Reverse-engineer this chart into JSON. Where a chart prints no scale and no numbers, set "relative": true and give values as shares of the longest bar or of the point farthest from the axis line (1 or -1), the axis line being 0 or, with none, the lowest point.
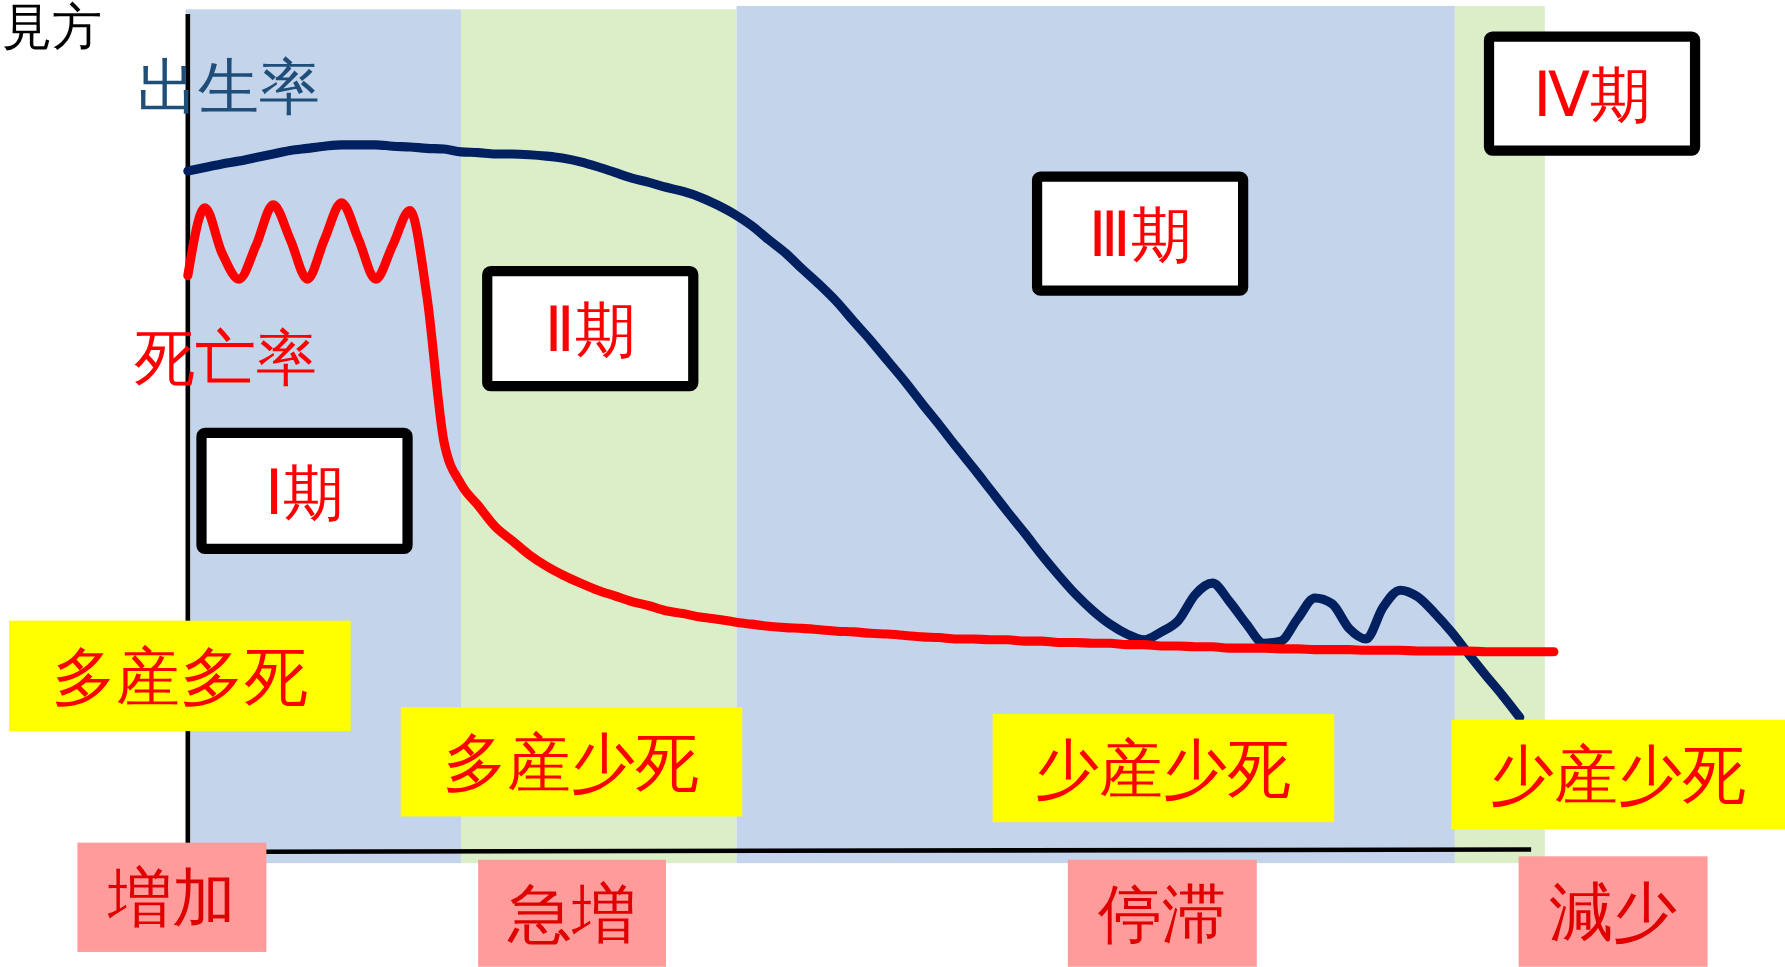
{
  "chart_data": {
    "type": "line",
    "title": "見方",
    "relative": true,
    "categories": [
      null,
      null,
      null,
      null,
      null,
      null,
      null,
      null,
      null,
      null,
      null,
      null,
      null,
      null,
      null,
      null,
      null,
      null,
      null,
      null,
      null,
      null,
      null,
      null,
      null,
      null,
      null,
      null,
      null,
      null,
      null,
      null,
      null,
      null,
      null,
      null,
      null,
      null,
      null,
      null,
      null,
      null,
      null,
      null,
      null,
      null,
      null,
      null,
      null,
      null,
      null,
      null,
      null,
      null,
      null,
      null,
      null,
      null,
      null,
      null,
      null,
      null,
      null,
      null,
      null,
      null,
      null,
      null,
      null,
      null,
      null,
      null,
      null,
      null,
      null,
      null,
      null,
      null,
      null,
      null,
      null
    ],
    "series": [
      {
        "name": "出生率",
        "color": "#002060",
        "values": [
          0.963,
          0.968,
          0.973,
          0.977,
          0.982,
          0.987,
          0.992,
          0.995,
          0.998,
          1,
          1,
          1,
          0.998,
          0.997,
          0.995,
          0.994,
          0.99,
          0.989,
          0.987,
          0.987,
          0.986,
          0.984,
          0.981,
          0.976,
          0.969,
          0.961,
          0.953,
          0.947,
          0.94,
          0.934,
          0.926,
          0.915,
          0.902,
          0.886,
          0.866,
          0.847,
          0.824,
          0.802,
          0.778,
          0.75,
          0.723,
          0.694,
          0.665,
          0.634,
          0.604,
          0.573,
          0.543,
          0.512,
          0.481,
          0.451,
          0.42,
          0.391,
          0.364,
          0.341,
          0.322,
          0.308,
          0.3,
          0.311,
          0.327,
          0.364,
          0.38,
          0.354,
          0.322,
          0.295,
          0.298,
          0.33,
          0.359,
          0.351,
          0.316,
          0.301,
          0.346,
          0.37,
          0.361,
          0.338,
          0.311,
          0.28,
          0.25,
          0.221,
          0.19,
          null,
          null
        ]
      },
      {
        "name": "死亡率",
        "color": "#ff0000",
        "values": [
          0.815,
          0.911,
          0.847,
          0.81,
          0.858,
          0.915,
          0.866,
          0.81,
          0.866,
          0.918,
          0.866,
          0.81,
          0.858,
          0.907,
          0.786,
          0.58,
          0.52,
          0.49,
          0.46,
          0.44,
          0.42,
          0.404,
          0.391,
          0.38,
          0.37,
          0.362,
          0.354,
          0.348,
          0.341,
          0.337,
          0.332,
          0.329,
          0.325,
          0.322,
          0.319,
          0.317,
          0.316,
          0.314,
          0.312,
          0.311,
          0.309,
          0.308,
          0.306,
          0.304,
          0.303,
          0.301,
          0.301,
          0.3,
          0.3,
          0.298,
          0.298,
          0.296,
          0.296,
          0.295,
          0.295,
          0.293,
          0.293,
          0.291,
          0.291,
          0.29,
          0.29,
          0.288,
          0.288,
          0.288,
          0.287,
          0.287,
          0.286,
          0.286,
          0.286,
          0.285,
          0.285,
          0.285,
          0.284,
          0.284,
          0.284,
          0.284,
          0.283,
          0.283,
          0.283,
          0.283,
          0.283
        ]
      }
    ],
    "annotations": [
      "Ⅰ期",
      "Ⅱ期",
      "Ⅲ期",
      "Ⅳ期",
      "多産多死",
      "多産少死",
      "少産少死",
      "少産少死",
      "増加",
      "急増",
      "停滞",
      "減少"
    ]
  }
}
